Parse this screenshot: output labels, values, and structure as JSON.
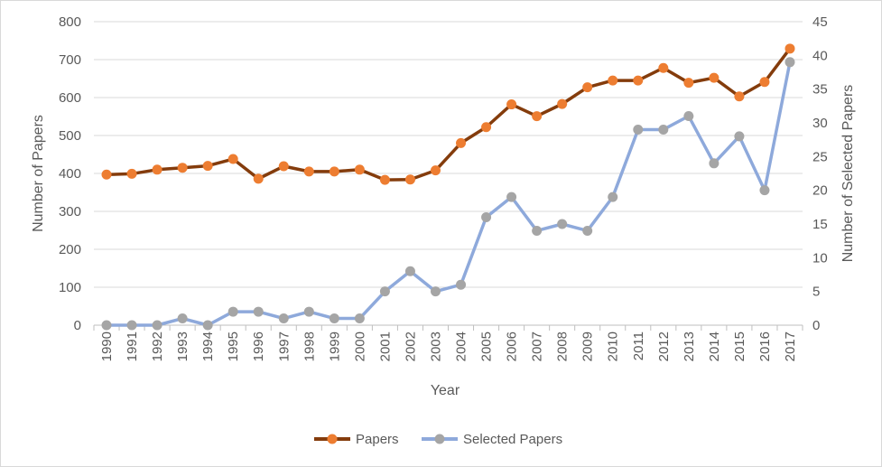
{
  "chart_data": {
    "type": "line",
    "title": "",
    "xlabel": "Year",
    "ylabel": "Number of Papers",
    "y2label": "Number of Selected Papers",
    "x": [
      "1990",
      "1991",
      "1992",
      "1993",
      "1994",
      "1995",
      "1996",
      "1997",
      "1998",
      "1999",
      "2000",
      "2001",
      "2002",
      "2003",
      "2004",
      "2005",
      "2006",
      "2007",
      "2008",
      "2009",
      "2010",
      "2011",
      "2012",
      "2013",
      "2014",
      "2015",
      "2016",
      "2017"
    ],
    "ylim": [
      0,
      800
    ],
    "y2lim": [
      0,
      45
    ],
    "yticks": [
      "0",
      "100",
      "200",
      "300",
      "400",
      "500",
      "600",
      "700",
      "800"
    ],
    "y2ticks": [
      "0",
      "5",
      "10",
      "15",
      "20",
      "25",
      "30",
      "35",
      "40",
      "45"
    ],
    "grid": "horizontal",
    "legend_position": "bottom",
    "series": [
      {
        "name": "Papers",
        "axis": "left",
        "color": "#843C0C",
        "marker_color": "#ED7D31",
        "values": [
          397,
          399,
          410,
          415,
          420,
          438,
          386,
          419,
          405,
          405,
          410,
          383,
          384,
          408,
          480,
          522,
          582,
          551,
          583,
          627,
          645,
          645,
          678,
          639,
          652,
          603,
          641,
          729
        ]
      },
      {
        "name": "Selected Papers",
        "axis": "right",
        "color": "#8EA9DB",
        "marker_color": "#A5A5A5",
        "values": [
          0,
          0,
          0,
          1,
          0,
          2,
          2,
          1,
          2,
          1,
          1,
          5,
          8,
          5,
          6,
          16,
          19,
          14,
          15,
          14,
          19,
          29,
          29,
          31,
          24,
          28,
          20,
          39
        ]
      }
    ]
  }
}
